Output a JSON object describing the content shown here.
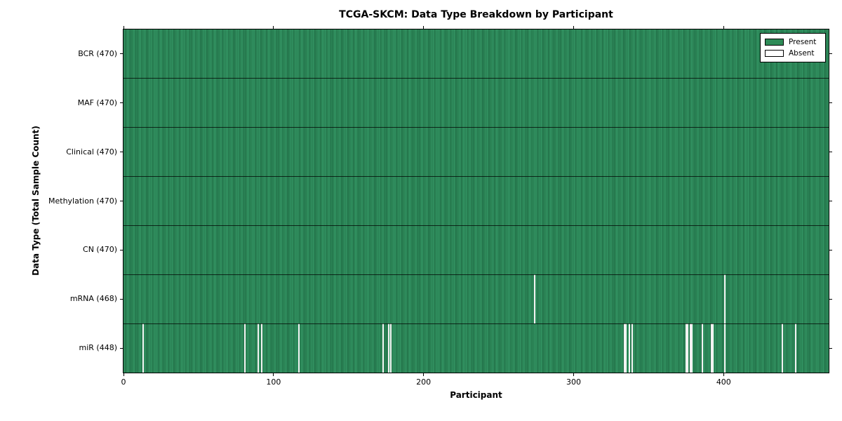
{
  "title": "TCGA-SKCM: Data Type Breakdown by Participant",
  "axes": {
    "x_label": "Participant",
    "y_label": "Data Type (Total Sample Count)"
  },
  "legend": {
    "items": [
      {
        "label": "Present",
        "color": "#2e8b57"
      },
      {
        "label": "Absent",
        "color": "#ffffff"
      }
    ]
  },
  "chart_data": {
    "type": "heatmap",
    "title": "TCGA-SKCM: Data Type Breakdown by Participant",
    "xlabel": "Participant",
    "ylabel": "Data Type (Total Sample Count)",
    "xlim": [
      0,
      470
    ],
    "x_ticks": [
      0,
      100,
      200,
      300,
      400
    ],
    "n_participants": 470,
    "grid": false,
    "legend_position": "upper right",
    "legend_entries": [
      "Present",
      "Absent"
    ],
    "colors": {
      "present": "#2e8b57",
      "present_edge_dark": "#1e6842",
      "absent": "#f2f2f2",
      "frame": "#000000"
    },
    "rows": [
      {
        "data_type": "BCR",
        "label": "BCR (470)",
        "present_count": 470,
        "absent_participants": []
      },
      {
        "data_type": "MAF",
        "label": "MAF (470)",
        "present_count": 470,
        "absent_participants": []
      },
      {
        "data_type": "Clinical",
        "label": "Clinical (470)",
        "present_count": 470,
        "absent_participants": []
      },
      {
        "data_type": "Methylation",
        "label": "Methylation (470)",
        "present_count": 470,
        "absent_participants": []
      },
      {
        "data_type": "CN",
        "label": "CN (470)",
        "present_count": 470,
        "absent_participants": []
      },
      {
        "data_type": "mRNA",
        "label": "mRNA (468)",
        "present_count": 468,
        "absent_participants": [
          274,
          401
        ]
      },
      {
        "data_type": "miR",
        "label": "miR (448)",
        "present_count": 448,
        "absent_participants": [
          13,
          81,
          90,
          92,
          117,
          173,
          177,
          178,
          334,
          335,
          337,
          339,
          375,
          376,
          378,
          379,
          386,
          392,
          393,
          401,
          439,
          448
        ]
      }
    ]
  }
}
